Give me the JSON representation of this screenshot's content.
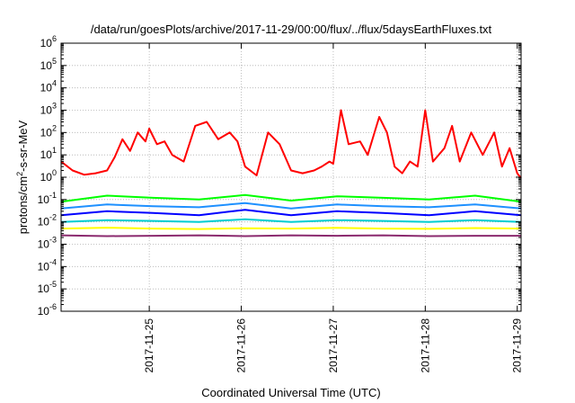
{
  "chart_data": {
    "type": "line",
    "title": "/data/run/goesPlots/archive/2017-11-29/00:00/flux/../flux/5daysEarthFluxes.txt",
    "xlabel": "Coordinated Universal Time (UTC)",
    "ylabel": {
      "base": "protons/cm",
      "sup": "2",
      "rest": "-s-sr-MeV"
    },
    "yscale": "log",
    "ylim": [
      1e-06,
      1000000.0
    ],
    "yticks": [
      {
        "value": 1e-06,
        "base": "10",
        "exp": "-6"
      },
      {
        "value": 1e-05,
        "base": "10",
        "exp": "-5"
      },
      {
        "value": 0.0001,
        "base": "10",
        "exp": "-4"
      },
      {
        "value": 0.001,
        "base": "10",
        "exp": "-3"
      },
      {
        "value": 0.01,
        "base": "10",
        "exp": "-2"
      },
      {
        "value": 0.1,
        "base": "10",
        "exp": "-1"
      },
      {
        "value": 1,
        "base": "10",
        "exp": "0"
      },
      {
        "value": 10,
        "base": "10",
        "exp": "1"
      },
      {
        "value": 100,
        "base": "10",
        "exp": "2"
      },
      {
        "value": 1000,
        "base": "10",
        "exp": "3"
      },
      {
        "value": 10000,
        "base": "10",
        "exp": "4"
      },
      {
        "value": 100000,
        "base": "10",
        "exp": "5"
      },
      {
        "value": 1000000,
        "base": "10",
        "exp": "6"
      }
    ],
    "xlim": [
      "2017-11-24T01:00",
      "2017-11-29T01:00"
    ],
    "xticks": [
      "2017-11-25",
      "2017-11-26",
      "2017-11-27",
      "2017-11-28",
      "2017-11-29"
    ],
    "grid": true,
    "legend": "none",
    "series": [
      {
        "color": "#ff0000",
        "x": [
          "2017-11-24T01:00",
          "2017-11-24T04:00",
          "2017-11-24T07:00",
          "2017-11-24T10:00",
          "2017-11-24T13:00",
          "2017-11-24T15:00",
          "2017-11-24T17:00",
          "2017-11-24T19:00",
          "2017-11-24T21:00",
          "2017-11-24T23:00",
          "2017-11-25T00:00",
          "2017-11-25T02:00",
          "2017-11-25T04:00",
          "2017-11-25T06:00",
          "2017-11-25T09:00",
          "2017-11-25T12:00",
          "2017-11-25T15:00",
          "2017-11-25T18:00",
          "2017-11-25T21:00",
          "2017-11-25T23:00",
          "2017-11-26T01:00",
          "2017-11-26T04:00",
          "2017-11-26T07:00",
          "2017-11-26T10:00",
          "2017-11-26T13:00",
          "2017-11-26T16:00",
          "2017-11-26T19:00",
          "2017-11-26T21:00",
          "2017-11-26T23:00",
          "2017-11-27T00:00",
          "2017-11-27T02:00",
          "2017-11-27T04:00",
          "2017-11-27T07:00",
          "2017-11-27T09:00",
          "2017-11-27T12:00",
          "2017-11-27T14:00",
          "2017-11-27T16:00",
          "2017-11-27T18:00",
          "2017-11-27T20:00",
          "2017-11-27T22:00",
          "2017-11-28T00:00",
          "2017-11-28T02:00",
          "2017-11-28T05:00",
          "2017-11-28T07:00",
          "2017-11-28T09:00",
          "2017-11-28T12:00",
          "2017-11-28T15:00",
          "2017-11-28T18:00",
          "2017-11-28T20:00",
          "2017-11-28T22:00",
          "2017-11-29T00:00",
          "2017-11-29T01:00"
        ],
        "values": [
          5,
          2,
          1.3,
          1.5,
          2,
          8,
          50,
          15,
          100,
          40,
          150,
          30,
          40,
          10,
          5,
          200,
          300,
          50,
          100,
          40,
          3,
          1.2,
          100,
          30,
          2,
          1.5,
          2,
          3,
          5,
          4,
          1000,
          30,
          40,
          10,
          500,
          100,
          3,
          1.5,
          5,
          3,
          1000,
          5,
          20,
          200,
          5,
          100,
          10,
          100,
          3,
          20,
          1.5,
          0.9
        ]
      },
      {
        "color": "#00ff00",
        "x": [
          "2017-11-24T01:00",
          "2017-11-24T13:00",
          "2017-11-25T01:00",
          "2017-11-25T13:00",
          "2017-11-26T01:00",
          "2017-11-26T13:00",
          "2017-11-27T01:00",
          "2017-11-27T13:00",
          "2017-11-28T01:00",
          "2017-11-28T13:00",
          "2017-11-29T01:00"
        ],
        "values": [
          0.08,
          0.15,
          0.12,
          0.1,
          0.16,
          0.09,
          0.14,
          0.12,
          0.1,
          0.15,
          0.08
        ]
      },
      {
        "color": "#1e90ff",
        "x": [
          "2017-11-24T01:00",
          "2017-11-24T13:00",
          "2017-11-25T01:00",
          "2017-11-25T13:00",
          "2017-11-26T01:00",
          "2017-11-26T13:00",
          "2017-11-27T01:00",
          "2017-11-27T13:00",
          "2017-11-28T01:00",
          "2017-11-28T13:00",
          "2017-11-29T01:00"
        ],
        "values": [
          0.04,
          0.06,
          0.05,
          0.045,
          0.07,
          0.04,
          0.06,
          0.05,
          0.045,
          0.06,
          0.04
        ]
      },
      {
        "color": "#0000ff",
        "x": [
          "2017-11-24T01:00",
          "2017-11-24T13:00",
          "2017-11-25T01:00",
          "2017-11-25T13:00",
          "2017-11-26T01:00",
          "2017-11-26T13:00",
          "2017-11-27T01:00",
          "2017-11-27T13:00",
          "2017-11-28T01:00",
          "2017-11-28T13:00",
          "2017-11-29T01:00"
        ],
        "values": [
          0.02,
          0.03,
          0.025,
          0.02,
          0.035,
          0.02,
          0.03,
          0.025,
          0.02,
          0.03,
          0.02
        ]
      },
      {
        "color": "#00ced1",
        "x": [
          "2017-11-24T01:00",
          "2017-11-24T13:00",
          "2017-11-25T01:00",
          "2017-11-25T13:00",
          "2017-11-26T01:00",
          "2017-11-26T13:00",
          "2017-11-27T01:00",
          "2017-11-27T13:00",
          "2017-11-28T01:00",
          "2017-11-28T13:00",
          "2017-11-29T01:00"
        ],
        "values": [
          0.01,
          0.012,
          0.011,
          0.01,
          0.013,
          0.01,
          0.012,
          0.011,
          0.01,
          0.012,
          0.01
        ]
      },
      {
        "color": "#ffff00",
        "x": [
          "2017-11-24T01:00",
          "2017-11-24T13:00",
          "2017-11-25T01:00",
          "2017-11-25T13:00",
          "2017-11-26T01:00",
          "2017-11-26T13:00",
          "2017-11-27T01:00",
          "2017-11-27T13:00",
          "2017-11-28T01:00",
          "2017-11-28T13:00",
          "2017-11-29T01:00"
        ],
        "values": [
          0.005,
          0.0055,
          0.005,
          0.0048,
          0.0052,
          0.005,
          0.0054,
          0.005,
          0.0049,
          0.0053,
          0.005
        ]
      },
      {
        "color": "#8b2a6e",
        "x": [
          "2017-11-24T01:00",
          "2017-11-24T13:00",
          "2017-11-25T01:00",
          "2017-11-25T13:00",
          "2017-11-26T01:00",
          "2017-11-26T13:00",
          "2017-11-27T01:00",
          "2017-11-27T13:00",
          "2017-11-28T01:00",
          "2017-11-28T13:00",
          "2017-11-29T01:00"
        ],
        "values": [
          0.0025,
          0.0023,
          0.0024,
          0.0025,
          0.0023,
          0.0025,
          0.0024,
          0.0025,
          0.0023,
          0.0024,
          0.0024
        ]
      }
    ]
  }
}
